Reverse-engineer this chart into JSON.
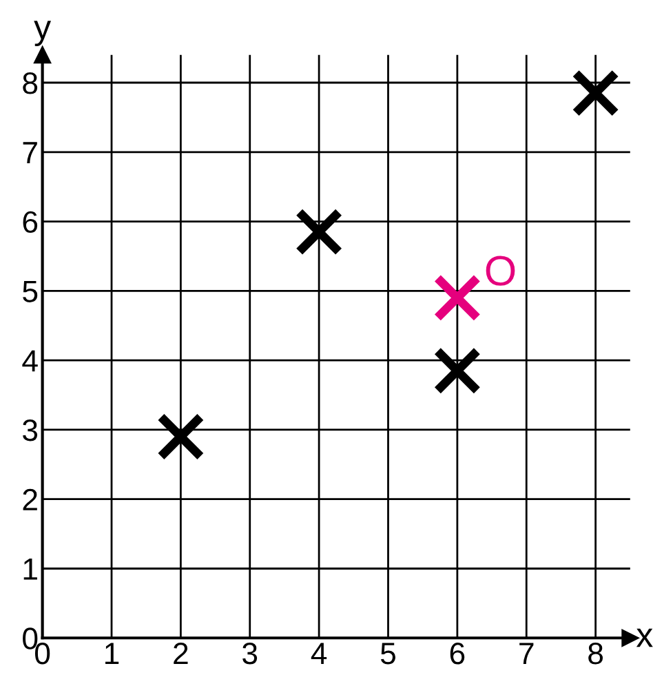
{
  "chart_data": {
    "type": "scatter",
    "xlabel": "x",
    "ylabel": "y",
    "series": [
      {
        "color": "#000000",
        "x": [
          2,
          4,
          6,
          8
        ],
        "values": [
          2.9,
          5.85,
          3.85,
          7.85
        ]
      },
      {
        "color": "#e5007d",
        "x": [
          6
        ],
        "values": [
          4.9
        ]
      }
    ],
    "annotations": [
      {
        "text": "O",
        "x": 6,
        "y": 4.9
      }
    ],
    "marker": "cross",
    "xlim": [
      0,
      8.5
    ],
    "ylim": [
      0,
      8.4
    ],
    "xticks": [
      0,
      1,
      2,
      3,
      4,
      5,
      6,
      7,
      8
    ],
    "yticks": [
      0,
      1,
      2,
      3,
      4,
      5,
      6,
      7,
      8
    ],
    "grid": true
  }
}
